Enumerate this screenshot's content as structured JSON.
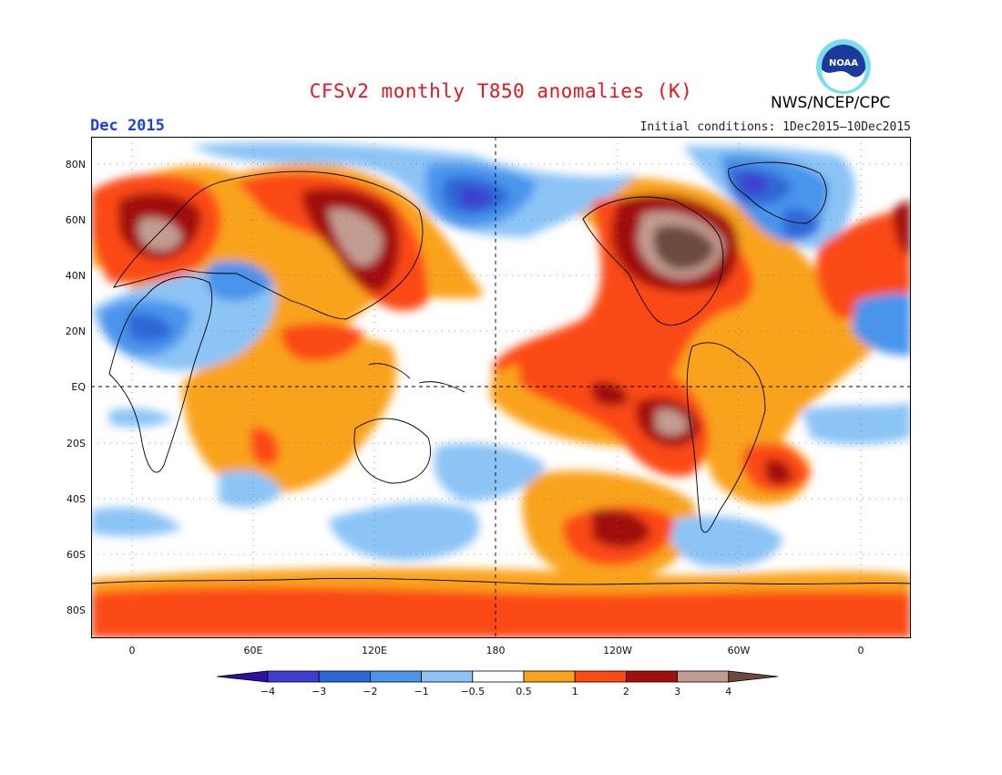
{
  "header": {
    "title": "CFSv2 monthly T850 anomalies (K)",
    "period": "Dec 2015",
    "initial_conditions": "Initial conditions: 1Dec2015—10Dec2015",
    "agency": "NWS/NCEP/CPC",
    "logo_text": "NOAA"
  },
  "map": {
    "lat_labels": [
      "80N",
      "60N",
      "40N",
      "20N",
      "EQ",
      "20S",
      "40S",
      "60S",
      "80S"
    ],
    "lon_labels": [
      "0",
      "60E",
      "120E",
      "180",
      "120W",
      "60W",
      "0"
    ]
  },
  "legend": {
    "labels": [
      "−4",
      "−3",
      "−2",
      "−1",
      "−0.5",
      "0.5",
      "1",
      "2",
      "3",
      "4"
    ],
    "colors": [
      "#2e0fa3",
      "#3c3fd0",
      "#2d67d6",
      "#4a94ec",
      "#8cc4f6",
      "#ffffff",
      "#f9a31a",
      "#fb4a12",
      "#a10f0f",
      "#c39c91",
      "#6e4a3c"
    ]
  }
}
